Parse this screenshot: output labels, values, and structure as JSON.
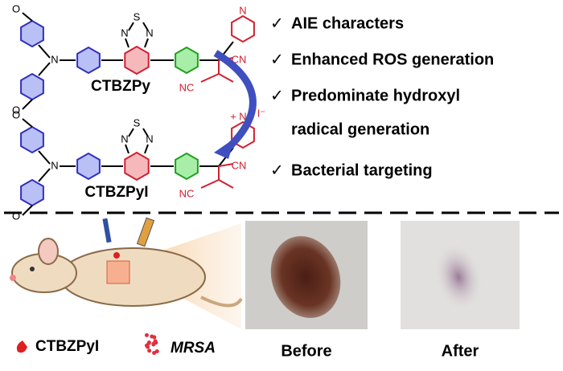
{
  "molecules": [
    {
      "name": "CTBZPy",
      "atoms": [
        "O",
        "N",
        "O",
        "N",
        "S",
        "N",
        "N",
        "NC",
        "CN"
      ]
    },
    {
      "name": "CTBZPyI",
      "atoms": [
        "O",
        "N",
        "O",
        "N",
        "S",
        "N",
        "N",
        "+",
        "I⁻",
        "NC",
        "CN"
      ]
    }
  ],
  "check": "✓",
  "features": [
    "AIE characters",
    "Enhanced ROS generation",
    "Predominate hydroxyl",
    "radical generation",
    "Bacterial targeting"
  ],
  "legend": {
    "agent": "CTBZPyI",
    "bacteria": "MRSA"
  },
  "photos": {
    "before": "Before",
    "after": "After"
  }
}
